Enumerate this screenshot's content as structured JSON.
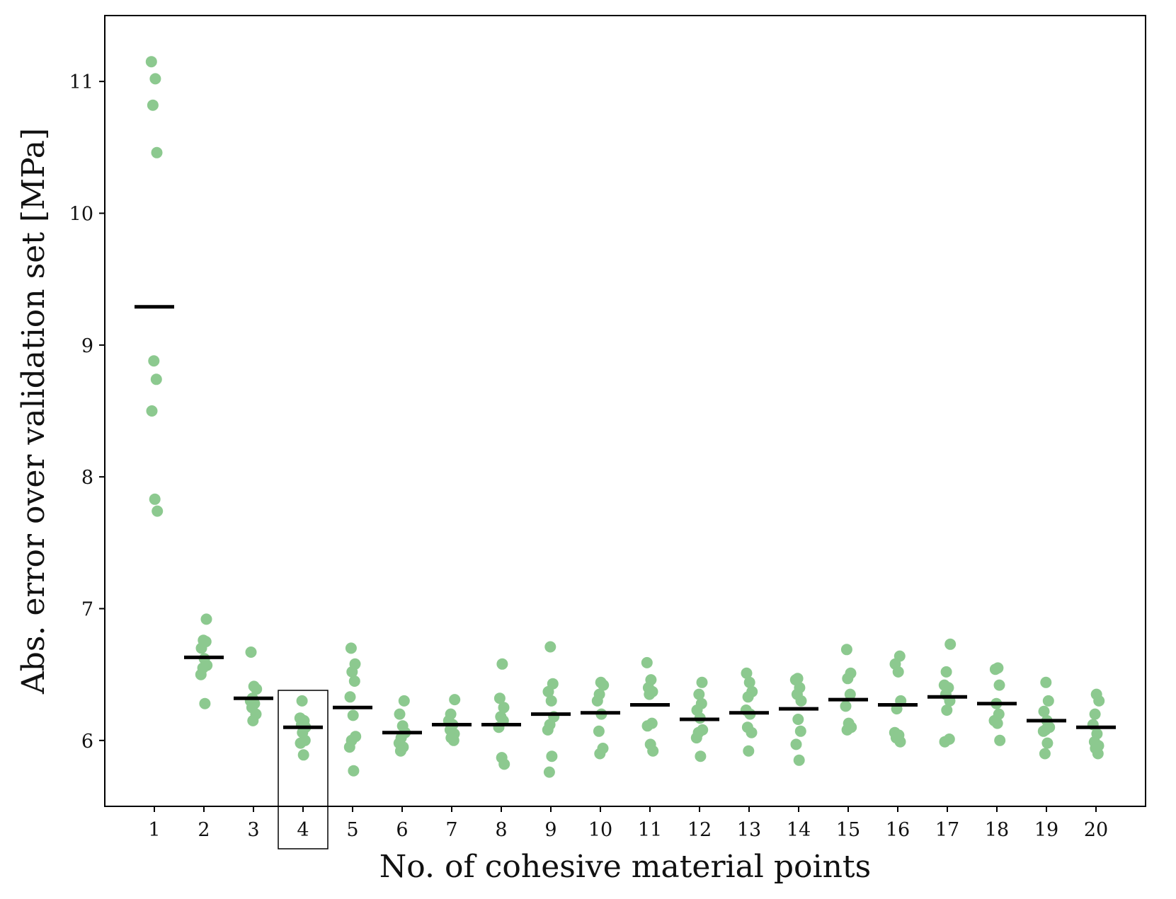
{
  "chart_data": {
    "type": "scatter",
    "title": "",
    "xlabel": "No. of cohesive material points",
    "ylabel": "Abs. error over validation set [MPa]",
    "xlim": [
      0,
      21
    ],
    "ylim": [
      5.5,
      11.5
    ],
    "x_ticks": [
      1,
      2,
      3,
      4,
      5,
      6,
      7,
      8,
      9,
      10,
      11,
      12,
      13,
      14,
      15,
      16,
      17,
      18,
      19,
      20
    ],
    "y_ticks": [
      6,
      7,
      8,
      9,
      10,
      11
    ],
    "grid": false,
    "legend": "none",
    "highlighted_category": 4,
    "colors": {
      "points": "#8cc98f",
      "mean": "#000000",
      "axis": "#000000"
    },
    "groups": [
      {
        "x": 1,
        "values": [
          11.15,
          11.02,
          10.82,
          10.46,
          8.88,
          8.74,
          8.5,
          7.83,
          7.74
        ],
        "mean": 9.29
      },
      {
        "x": 2,
        "values": [
          6.92,
          6.76,
          6.75,
          6.7,
          6.62,
          6.57,
          6.55,
          6.5,
          6.28
        ],
        "mean": 6.63
      },
      {
        "x": 3,
        "values": [
          6.67,
          6.41,
          6.39,
          6.32,
          6.3,
          6.28,
          6.25,
          6.2,
          6.15
        ],
        "mean": 6.32
      },
      {
        "x": 4,
        "values": [
          6.3,
          6.17,
          6.15,
          6.12,
          6.1,
          6.06,
          6.0,
          5.98,
          5.89
        ],
        "mean": 6.1
      },
      {
        "x": 5,
        "values": [
          6.7,
          6.58,
          6.52,
          6.45,
          6.33,
          6.19,
          6.03,
          6.0,
          5.95,
          5.77
        ],
        "mean": 6.25
      },
      {
        "x": 6,
        "values": [
          6.3,
          6.2,
          6.11,
          6.06,
          6.02,
          5.98,
          5.95,
          5.92
        ],
        "mean": 6.06
      },
      {
        "x": 7,
        "values": [
          6.31,
          6.2,
          6.15,
          6.12,
          6.08,
          6.05,
          6.02,
          6.0
        ],
        "mean": 6.12
      },
      {
        "x": 8,
        "values": [
          6.58,
          6.32,
          6.25,
          6.18,
          6.15,
          6.1,
          5.87,
          5.82
        ],
        "mean": 6.12
      },
      {
        "x": 9,
        "values": [
          6.71,
          6.43,
          6.37,
          6.3,
          6.18,
          6.12,
          6.08,
          5.88,
          5.76
        ],
        "mean": 6.2
      },
      {
        "x": 10,
        "values": [
          6.44,
          6.42,
          6.35,
          6.3,
          6.2,
          6.07,
          5.94,
          5.9
        ],
        "mean": 6.21
      },
      {
        "x": 11,
        "values": [
          6.59,
          6.46,
          6.4,
          6.37,
          6.35,
          6.13,
          6.11,
          5.97,
          5.92
        ],
        "mean": 6.27
      },
      {
        "x": 12,
        "values": [
          6.44,
          6.35,
          6.28,
          6.23,
          6.17,
          6.08,
          6.06,
          6.02,
          5.88
        ],
        "mean": 6.16
      },
      {
        "x": 13,
        "values": [
          6.51,
          6.44,
          6.37,
          6.33,
          6.23,
          6.2,
          6.1,
          6.06,
          5.92
        ],
        "mean": 6.21
      },
      {
        "x": 14,
        "values": [
          6.47,
          6.46,
          6.4,
          6.35,
          6.3,
          6.16,
          6.07,
          5.97,
          5.85
        ],
        "mean": 6.24
      },
      {
        "x": 15,
        "values": [
          6.69,
          6.51,
          6.47,
          6.35,
          6.26,
          6.13,
          6.1,
          6.08
        ],
        "mean": 6.31
      },
      {
        "x": 16,
        "values": [
          6.64,
          6.58,
          6.52,
          6.3,
          6.24,
          6.06,
          6.04,
          6.02,
          5.99
        ],
        "mean": 6.27
      },
      {
        "x": 17,
        "values": [
          6.73,
          6.52,
          6.42,
          6.4,
          6.35,
          6.3,
          6.23,
          6.01,
          5.99
        ],
        "mean": 6.33
      },
      {
        "x": 18,
        "values": [
          6.55,
          6.54,
          6.42,
          6.28,
          6.2,
          6.15,
          6.13,
          6.0
        ],
        "mean": 6.28
      },
      {
        "x": 19,
        "values": [
          6.44,
          6.3,
          6.22,
          6.15,
          6.1,
          6.08,
          6.07,
          5.98,
          5.9
        ],
        "mean": 6.15
      },
      {
        "x": 20,
        "values": [
          6.35,
          6.3,
          6.2,
          6.12,
          6.05,
          5.99,
          5.96,
          5.94,
          5.9
        ],
        "mean": 6.1
      }
    ]
  }
}
